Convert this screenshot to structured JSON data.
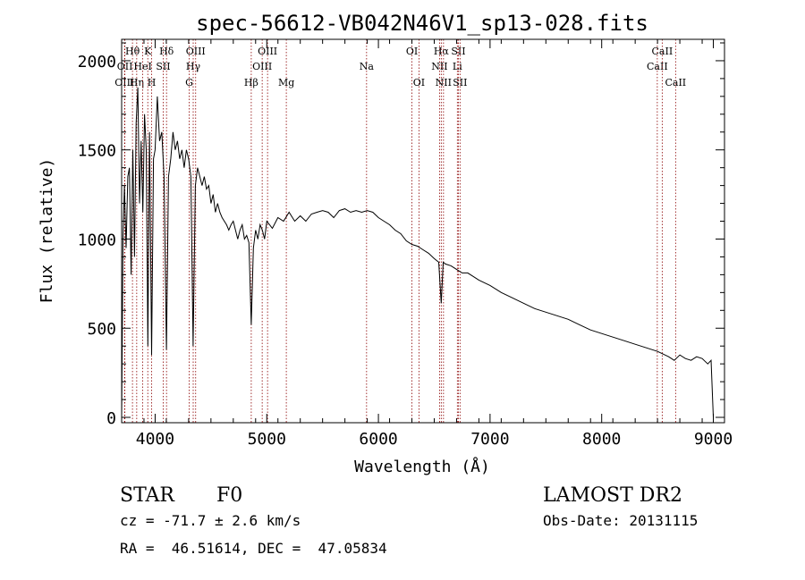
{
  "chart_data": {
    "type": "line",
    "title": "spec-56612-VB042N46V1_sp13-028.fits",
    "xlabel": "Wavelength (Å)",
    "ylabel": "Flux (relative)",
    "xlim": [
      3700,
      9100
    ],
    "ylim": [
      -30,
      2120
    ],
    "xticks": [
      4000,
      5000,
      6000,
      7000,
      8000,
      9000
    ],
    "yticks": [
      0,
      500,
      1000,
      1500,
      2000
    ],
    "grid": false,
    "line_color": "#000000",
    "marker_color": "#8b0000",
    "series": [
      {
        "x": [
          3700,
          3712,
          3725,
          3740,
          3755,
          3770,
          3785,
          3800,
          3815,
          3830,
          3845,
          3860,
          3875,
          3890,
          3905,
          3920,
          3935,
          3950,
          3968,
          3985,
          4000,
          4020,
          4040,
          4060,
          4080,
          4101,
          4120,
          4140,
          4160,
          4180,
          4200,
          4220,
          4240,
          4260,
          4280,
          4300,
          4320,
          4340,
          4360,
          4380,
          4400,
          4420,
          4440,
          4460,
          4480,
          4500,
          4520,
          4540,
          4560,
          4580,
          4600,
          4620,
          4640,
          4660,
          4680,
          4700,
          4720,
          4740,
          4760,
          4780,
          4800,
          4820,
          4840,
          4861,
          4880,
          4900,
          4920,
          4940,
          4960,
          4980,
          5000,
          5050,
          5100,
          5150,
          5200,
          5250,
          5300,
          5350,
          5400,
          5450,
          5500,
          5550,
          5600,
          5650,
          5700,
          5750,
          5800,
          5850,
          5900,
          5950,
          6000,
          6050,
          6100,
          6150,
          6200,
          6250,
          6300,
          6350,
          6400,
          6450,
          6500,
          6540,
          6563,
          6580,
          6600,
          6650,
          6700,
          6750,
          6800,
          6850,
          6900,
          7000,
          7100,
          7200,
          7300,
          7400,
          7500,
          7600,
          7700,
          7800,
          7900,
          8000,
          8100,
          8200,
          8300,
          8400,
          8500,
          8550,
          8600,
          8650,
          8700,
          8750,
          8800,
          8850,
          8900,
          8950,
          8980,
          9000
        ],
        "y": [
          0,
          1000,
          1300,
          950,
          1350,
          1400,
          800,
          1500,
          900,
          1650,
          1850,
          1200,
          1550,
          1150,
          1700,
          1500,
          400,
          1600,
          350,
          1450,
          1500,
          1800,
          1550,
          1600,
          1350,
          380,
          1350,
          1450,
          1600,
          1500,
          1550,
          1450,
          1500,
          1400,
          1500,
          1450,
          1350,
          400,
          1300,
          1400,
          1350,
          1300,
          1350,
          1280,
          1300,
          1200,
          1250,
          1150,
          1200,
          1150,
          1120,
          1100,
          1080,
          1050,
          1080,
          1100,
          1050,
          1000,
          1050,
          1080,
          1000,
          1020,
          980,
          520,
          950,
          1050,
          1000,
          1080,
          1050,
          1000,
          1100,
          1060,
          1120,
          1100,
          1150,
          1100,
          1130,
          1100,
          1140,
          1150,
          1160,
          1150,
          1120,
          1160,
          1170,
          1150,
          1160,
          1150,
          1160,
          1150,
          1120,
          1100,
          1080,
          1050,
          1030,
          990,
          970,
          960,
          940,
          920,
          890,
          870,
          640,
          870,
          860,
          850,
          830,
          810,
          810,
          790,
          770,
          740,
          700,
          670,
          640,
          610,
          590,
          570,
          550,
          520,
          490,
          470,
          450,
          430,
          410,
          390,
          370,
          355,
          340,
          320,
          350,
          330,
          320,
          340,
          330,
          300,
          320,
          0
        ]
      }
    ],
    "line_markers": [
      {
        "label": "OIII",
        "x": 3726,
        "row": 2
      },
      {
        "label": "OII",
        "x": 3729,
        "row": 1
      },
      {
        "label": "Hθ",
        "x": 3797,
        "row": 0
      },
      {
        "label": "Hη",
        "x": 3835,
        "row": 2
      },
      {
        "label": "HeI",
        "x": 3889,
        "row": 1
      },
      {
        "label": "K",
        "x": 3934,
        "row": 0
      },
      {
        "label": "H",
        "x": 3969,
        "row": 2
      },
      {
        "label": "SII",
        "x": 4072,
        "row": 1
      },
      {
        "label": "Hδ",
        "x": 4102,
        "row": 0
      },
      {
        "label": "G",
        "x": 4305,
        "row": 2
      },
      {
        "label": "Hγ",
        "x": 4341,
        "row": 1
      },
      {
        "label": "OIII",
        "x": 4363,
        "row": 0
      },
      {
        "label": "Hβ",
        "x": 4861,
        "row": 2
      },
      {
        "label": "OIII",
        "x": 4959,
        "row": 1
      },
      {
        "label": "OIII",
        "x": 5007,
        "row": 0
      },
      {
        "label": "Mg",
        "x": 5175,
        "row": 2
      },
      {
        "label": "Na",
        "x": 5894,
        "row": 1
      },
      {
        "label": "OI",
        "x": 6300,
        "row": 0
      },
      {
        "label": "OI",
        "x": 6363,
        "row": 2
      },
      {
        "label": "NII",
        "x": 6548,
        "row": 1
      },
      {
        "label": "Hα",
        "x": 6563,
        "row": 0
      },
      {
        "label": "NII",
        "x": 6583,
        "row": 2
      },
      {
        "label": "Li",
        "x": 6707,
        "row": 1
      },
      {
        "label": "SII",
        "x": 6716,
        "row": 0
      },
      {
        "label": "SII",
        "x": 6731,
        "row": 2
      },
      {
        "label": "CaII",
        "x": 8498,
        "row": 1
      },
      {
        "label": "CaII",
        "x": 8542,
        "row": 0
      },
      {
        "label": "CaII",
        "x": 8662,
        "row": 2
      }
    ]
  },
  "info": {
    "object_class": "STAR",
    "subclass": "F0",
    "survey": "LAMOST DR2",
    "redshift": "cz = -71.7 ± 2.6 km/s",
    "obs_date": "Obs-Date: 20131115",
    "coords": "RA =  46.51614, DEC =  47.05834"
  }
}
